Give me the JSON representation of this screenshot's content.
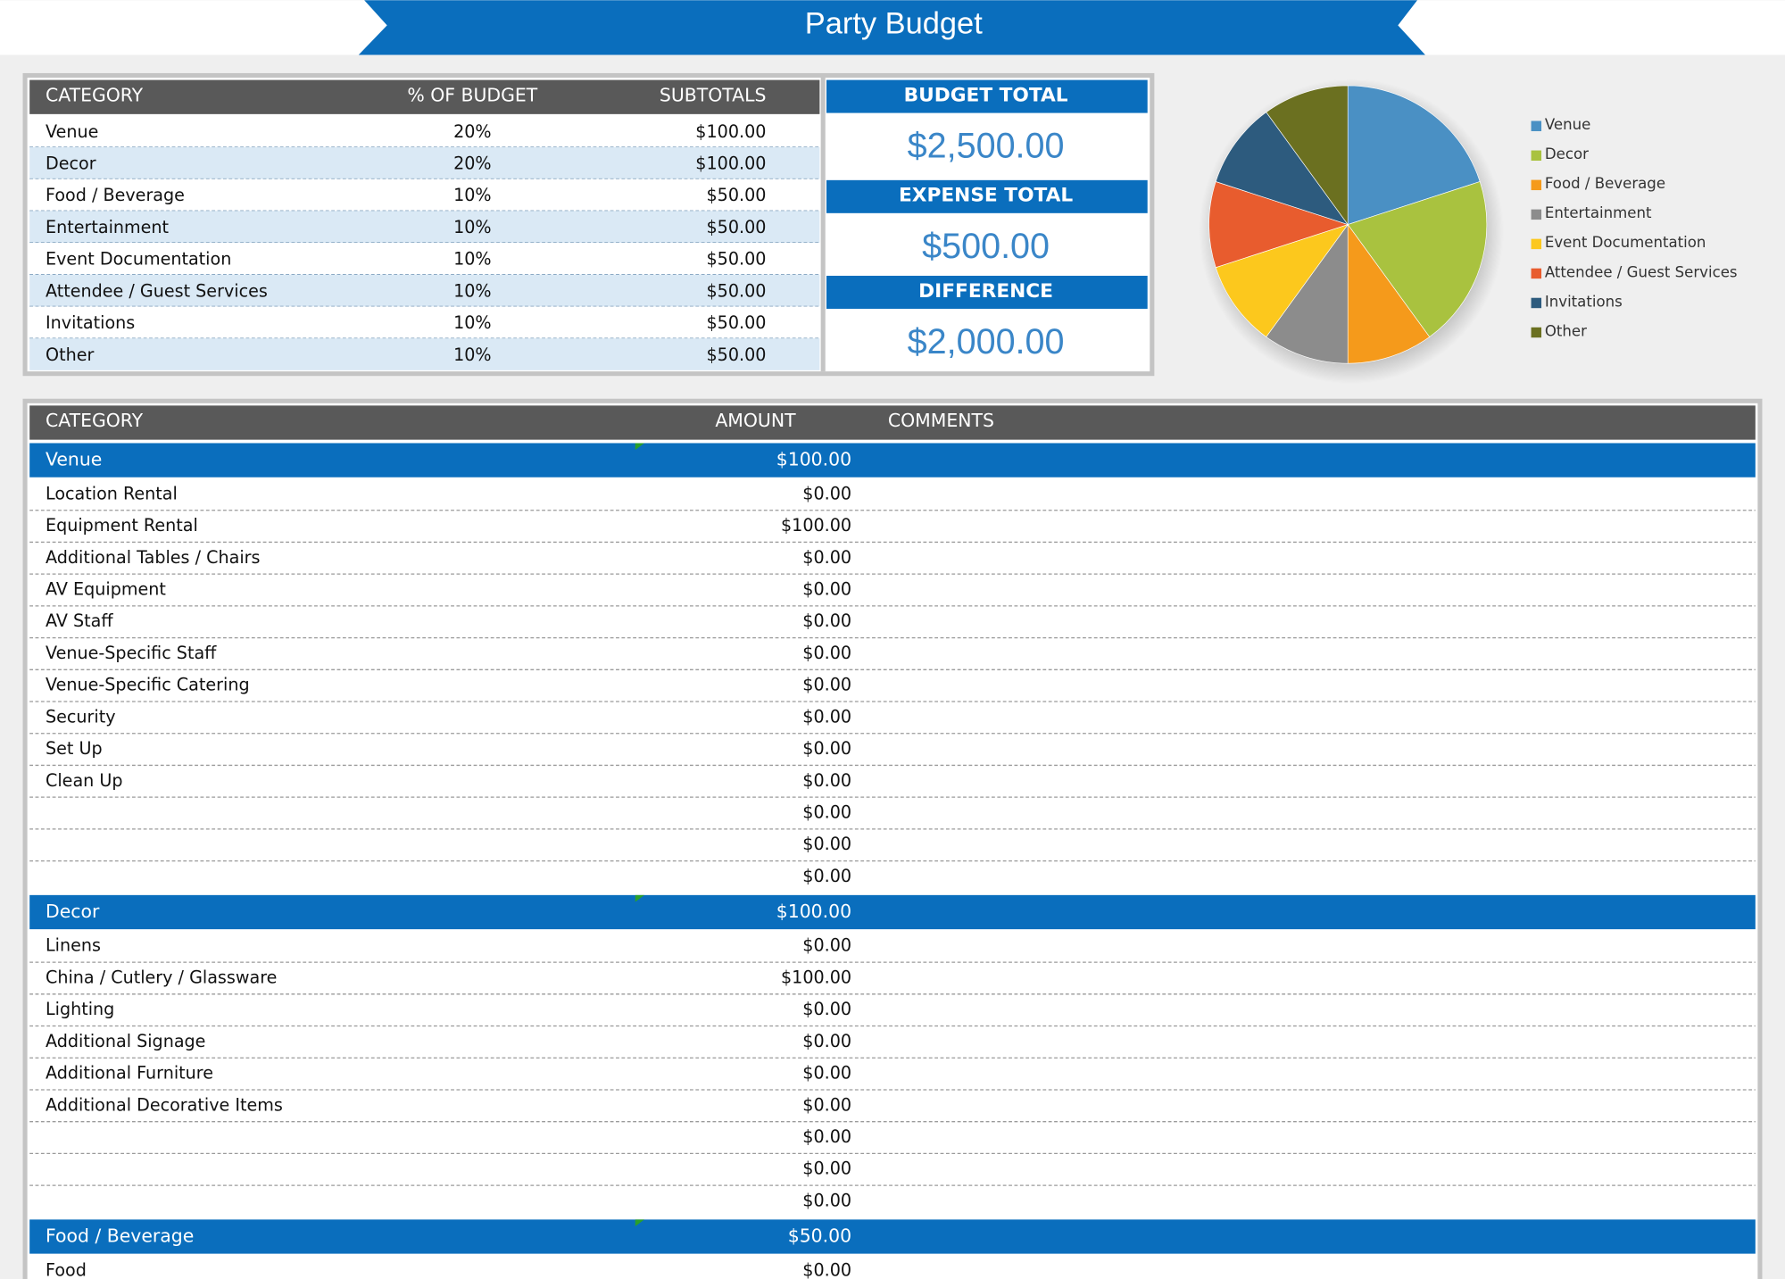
{
  "header": {
    "title": "Party Budget"
  },
  "summary_table": {
    "columns": [
      "CATEGORY",
      "% OF BUDGET",
      "SUBTOTALS"
    ],
    "rows": [
      [
        "Venue",
        "20%",
        "$100.00"
      ],
      [
        "Decor",
        "20%",
        "$100.00"
      ],
      [
        "Food / Beverage",
        "10%",
        "$50.00"
      ],
      [
        "Entertainment",
        "10%",
        "$50.00"
      ],
      [
        "Event Documentation",
        "10%",
        "$50.00"
      ],
      [
        "Attendee / Guest Services",
        "10%",
        "$50.00"
      ],
      [
        "Invitations",
        "10%",
        "$50.00"
      ],
      [
        "Other",
        "10%",
        "$50.00"
      ]
    ]
  },
  "totals": [
    {
      "label": "BUDGET TOTAL",
      "value": "$2,500.00"
    },
    {
      "label": "EXPENSE TOTAL",
      "value": "$500.00"
    },
    {
      "label": "DIFFERENCE",
      "value": "$2,000.00"
    }
  ],
  "chart_data": {
    "type": "pie",
    "categories": [
      "Venue",
      "Decor",
      "Food / Beverage",
      "Entertainment",
      "Event Documentation",
      "Attendee / Guest Services",
      "Invitations",
      "Other"
    ],
    "values": [
      20,
      20,
      10,
      10,
      10,
      10,
      10,
      10
    ],
    "colors": [
      "#4a90c4",
      "#a9c23f",
      "#f59a1b",
      "#8c8c8c",
      "#fcc81d",
      "#e85c2e",
      "#2d5b7e",
      "#6b7020"
    ]
  },
  "detail_table": {
    "columns": [
      "CATEGORY",
      "AMOUNT",
      "COMMENTS"
    ],
    "sections": [
      {
        "name": "Venue",
        "amount": "$100.00",
        "items": [
          {
            "name": "Location Rental",
            "amount": "$0.00"
          },
          {
            "name": "Equipment Rental",
            "amount": "$100.00"
          },
          {
            "name": "Additional Tables / Chairs",
            "amount": "$0.00"
          },
          {
            "name": "AV Equipment",
            "amount": "$0.00"
          },
          {
            "name": "AV Staff",
            "amount": "$0.00"
          },
          {
            "name": "Venue-Specific Staff",
            "amount": "$0.00"
          },
          {
            "name": "Venue-Specific Catering",
            "amount": "$0.00"
          },
          {
            "name": "Security",
            "amount": "$0.00"
          },
          {
            "name": "Set Up",
            "amount": "$0.00"
          },
          {
            "name": "Clean Up",
            "amount": "$0.00"
          },
          {
            "amount": "$0.00"
          },
          {
            "amount": "$0.00"
          },
          {
            "amount": "$0.00"
          }
        ]
      },
      {
        "name": "Decor",
        "amount": "$100.00",
        "items": [
          {
            "name": "Linens",
            "amount": "$0.00"
          },
          {
            "name": "China / Cutlery / Glassware",
            "amount": "$100.00"
          },
          {
            "name": "Lighting",
            "amount": "$0.00"
          },
          {
            "name": "Additional Signage",
            "amount": "$0.00"
          },
          {
            "name": "Additional Furniture",
            "amount": "$0.00"
          },
          {
            "name": "Additional Decorative Items",
            "amount": "$0.00"
          },
          {
            "amount": "$0.00"
          },
          {
            "amount": "$0.00"
          },
          {
            "amount": "$0.00"
          }
        ]
      },
      {
        "name": "Food / Beverage",
        "amount": "$50.00",
        "items": [
          {
            "name": "Food",
            "amount": "$0.00"
          }
        ]
      }
    ]
  }
}
